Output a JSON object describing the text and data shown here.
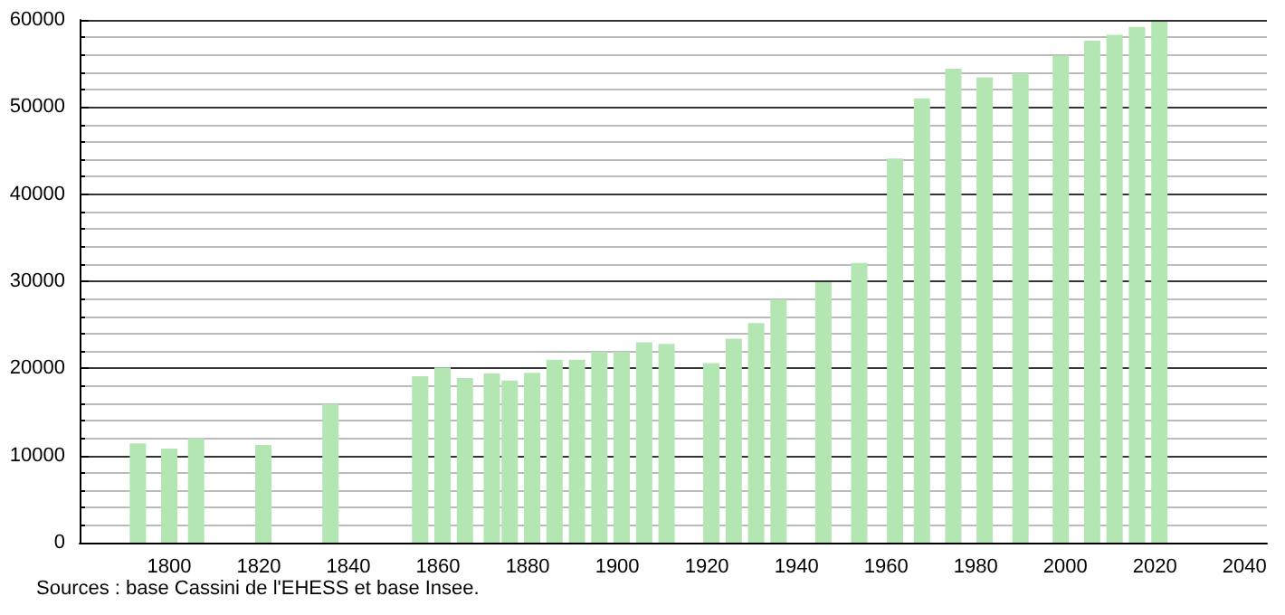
{
  "chart_data": {
    "type": "bar",
    "x": [
      1793,
      1800,
      1806,
      1821,
      1836,
      1856,
      1861,
      1866,
      1872,
      1876,
      1881,
      1886,
      1891,
      1896,
      1901,
      1906,
      1911,
      1921,
      1926,
      1931,
      1936,
      1946,
      1954,
      1962,
      1968,
      1975,
      1982,
      1990,
      1999,
      2006,
      2011,
      2016,
      2021
    ],
    "values": [
      11400,
      10800,
      12000,
      11200,
      15900,
      19100,
      20100,
      18900,
      19400,
      18600,
      19500,
      21000,
      21000,
      21900,
      21900,
      23000,
      22800,
      20600,
      23400,
      25200,
      27900,
      29900,
      32100,
      44100,
      51000,
      54400,
      53400,
      53900,
      55900,
      57600,
      58300,
      59200,
      59800
    ],
    "color": "#b3e6b3",
    "xlim": [
      1780,
      2045
    ],
    "xticks": [
      1800,
      1820,
      1840,
      1860,
      1880,
      1900,
      1920,
      1940,
      1960,
      1980,
      2000,
      2020,
      2040
    ],
    "ylim": [
      0,
      60000
    ],
    "yticks": [
      0,
      10000,
      20000,
      30000,
      40000,
      50000,
      60000
    ],
    "grid": "y",
    "annotations": [
      "Sources : base Cassini de l'EHESS et base Insee."
    ]
  }
}
